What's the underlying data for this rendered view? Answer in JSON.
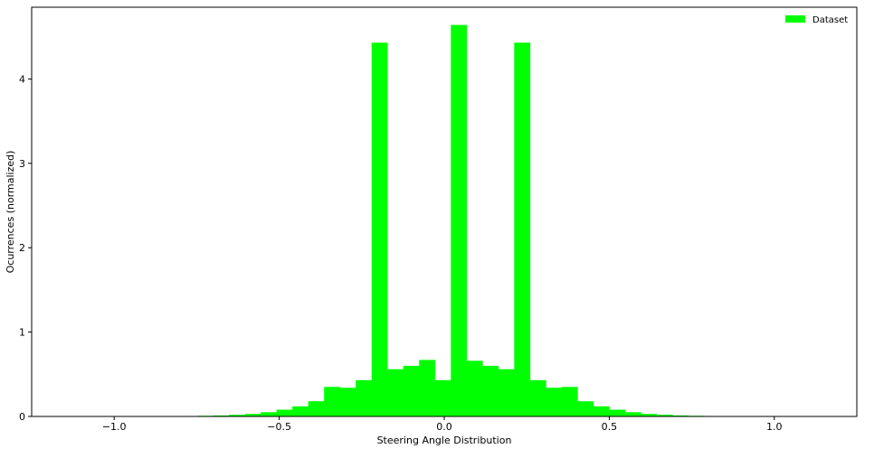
{
  "chart_data": {
    "type": "bar",
    "title": "",
    "xlabel": "Steering Angle Distribution",
    "ylabel": "Ocurrences (normalized)",
    "xlim": [
      -1.25,
      1.25
    ],
    "ylim": [
      0,
      4.85
    ],
    "xticks": [
      -1.0,
      -0.5,
      0.0,
      0.5,
      1.0
    ],
    "xtick_labels": [
      "−1.0",
      "−0.5",
      "0.0",
      "0.5",
      "1.0"
    ],
    "yticks": [
      0,
      1,
      2,
      3,
      4
    ],
    "ytick_labels": [
      "0",
      "1",
      "2",
      "3",
      "4"
    ],
    "grid": false,
    "legend_position": "top-right",
    "bar_color": "#00ff00",
    "series": [
      {
        "name": "Dataset",
        "bin_width": 0.048,
        "bins": [
          {
            "x": -0.82,
            "value": 0.002
          },
          {
            "x": -0.772,
            "value": 0.005
          },
          {
            "x": -0.724,
            "value": 0.008
          },
          {
            "x": -0.676,
            "value": 0.012
          },
          {
            "x": -0.628,
            "value": 0.02
          },
          {
            "x": -0.58,
            "value": 0.03
          },
          {
            "x": -0.532,
            "value": 0.05
          },
          {
            "x": -0.484,
            "value": 0.08
          },
          {
            "x": -0.436,
            "value": 0.12
          },
          {
            "x": -0.388,
            "value": 0.18
          },
          {
            "x": -0.34,
            "value": 0.35
          },
          {
            "x": -0.292,
            "value": 0.34
          },
          {
            "x": -0.244,
            "value": 0.43
          },
          {
            "x": -0.196,
            "value": 4.43
          },
          {
            "x": -0.148,
            "value": 0.56
          },
          {
            "x": -0.1,
            "value": 0.6
          },
          {
            "x": -0.052,
            "value": 0.67
          },
          {
            "x": -0.004,
            "value": 0.43
          },
          {
            "x": 0.044,
            "value": 4.64
          },
          {
            "x": 0.092,
            "value": 0.66
          },
          {
            "x": 0.14,
            "value": 0.6
          },
          {
            "x": 0.188,
            "value": 0.56
          },
          {
            "x": 0.236,
            "value": 4.43
          },
          {
            "x": 0.284,
            "value": 0.43
          },
          {
            "x": 0.332,
            "value": 0.34
          },
          {
            "x": 0.38,
            "value": 0.35
          },
          {
            "x": 0.428,
            "value": 0.18
          },
          {
            "x": 0.476,
            "value": 0.12
          },
          {
            "x": 0.524,
            "value": 0.08
          },
          {
            "x": 0.572,
            "value": 0.05
          },
          {
            "x": 0.62,
            "value": 0.03
          },
          {
            "x": 0.668,
            "value": 0.02
          },
          {
            "x": 0.716,
            "value": 0.012
          },
          {
            "x": 0.764,
            "value": 0.008
          },
          {
            "x": 0.812,
            "value": 0.005
          }
        ]
      }
    ]
  }
}
